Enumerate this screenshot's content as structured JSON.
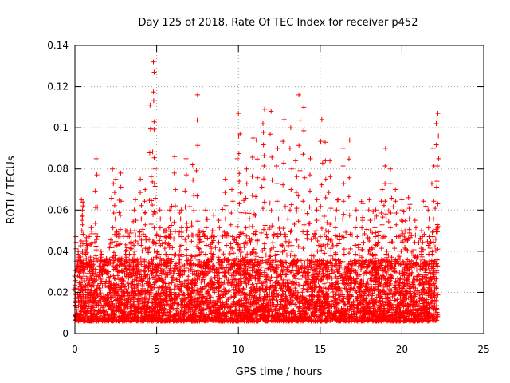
{
  "chart_data": {
    "type": "scatter",
    "title": "Day 125 of 2018, Rate Of TEC Index for receiver p452",
    "xlabel": "GPS time / hours",
    "ylabel": "ROTI / TECUs",
    "xlim": [
      0,
      25
    ],
    "ylim": [
      0,
      0.14
    ],
    "x_ticks": [
      0,
      5,
      10,
      15,
      20,
      25
    ],
    "y_ticks": [
      0,
      0.02,
      0.04,
      0.06,
      0.08,
      0.1,
      0.12,
      0.14
    ],
    "x_tick_labels": [
      "0",
      "5",
      "10",
      "15",
      "20",
      "25"
    ],
    "y_tick_labels": [
      "0",
      "0.02",
      "0.04",
      "0.06",
      "0.08",
      "0.1",
      "0.12",
      "0.14"
    ],
    "grid": true,
    "marker": "+",
    "color": "#ff0000",
    "series": [
      {
        "name": "ROTI",
        "description_points": "dense cloud of several thousand samples; values below approximate the envelope of the scatter",
        "x": [
          0.0,
          0.2,
          0.4,
          0.5,
          0.7,
          1.0,
          1.3,
          1.6,
          2.0,
          2.3,
          2.5,
          2.8,
          3.1,
          3.4,
          3.7,
          4.0,
          4.3,
          4.6,
          4.8,
          4.85,
          4.9,
          5.2,
          5.5,
          5.8,
          6.1,
          6.5,
          6.8,
          7.2,
          7.5,
          7.6,
          8.0,
          8.4,
          8.8,
          9.2,
          9.6,
          10.0,
          10.1,
          10.5,
          10.9,
          11.1,
          11.5,
          11.6,
          12.0,
          12.4,
          12.8,
          13.2,
          13.5,
          13.7,
          14.0,
          14.4,
          14.8,
          15.1,
          15.3,
          15.6,
          16.0,
          16.4,
          16.8,
          17.2,
          17.6,
          18.0,
          18.4,
          18.8,
          19.0,
          19.3,
          19.6,
          20.0,
          20.4,
          20.8,
          21.2,
          21.6,
          21.9,
          22.1,
          22.2
        ],
        "y": [
          0.015,
          0.04,
          0.065,
          0.062,
          0.045,
          0.035,
          0.085,
          0.04,
          0.03,
          0.08,
          0.075,
          0.078,
          0.04,
          0.05,
          0.065,
          0.075,
          0.07,
          0.111,
          0.132,
          0.127,
          0.08,
          0.06,
          0.05,
          0.06,
          0.086,
          0.06,
          0.085,
          0.082,
          0.116,
          0.05,
          0.06,
          0.05,
          0.055,
          0.075,
          0.07,
          0.107,
          0.097,
          0.08,
          0.095,
          0.094,
          0.102,
          0.109,
          0.108,
          0.09,
          0.104,
          0.1,
          0.084,
          0.116,
          0.11,
          0.085,
          0.065,
          0.104,
          0.093,
          0.084,
          0.06,
          0.09,
          0.094,
          0.06,
          0.055,
          0.065,
          0.06,
          0.07,
          0.09,
          0.08,
          0.07,
          0.065,
          0.066,
          0.055,
          0.05,
          0.06,
          0.09,
          0.102,
          0.107
        ]
      }
    ]
  }
}
